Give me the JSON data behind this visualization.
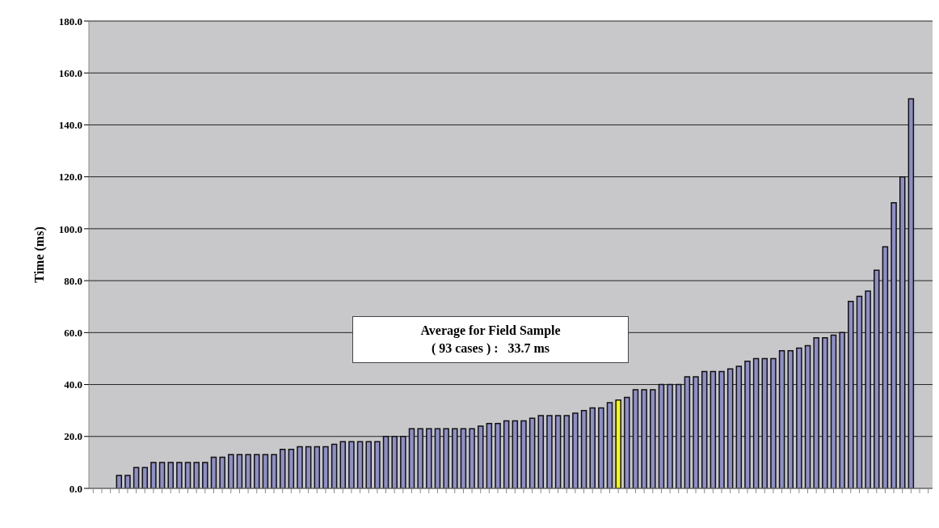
{
  "chart_data": {
    "type": "bar",
    "ylabel": "Time (ms)",
    "categories": [
      null,
      null,
      null,
      null,
      null,
      null,
      null,
      null,
      null,
      null,
      null,
      null,
      null,
      null,
      null,
      null,
      null,
      null,
      null,
      null,
      null,
      null,
      null,
      null,
      null,
      null,
      null,
      null,
      null,
      null,
      null,
      null,
      null,
      null,
      null,
      null,
      null,
      null,
      null,
      null,
      null,
      null,
      null,
      null,
      null,
      null,
      null,
      null,
      null,
      null,
      null,
      null,
      null,
      null,
      null,
      null,
      null,
      null,
      null,
      null,
      null,
      null,
      null,
      null,
      null,
      null,
      null,
      null,
      null,
      null,
      null,
      null,
      null,
      null,
      null,
      null,
      null,
      null,
      null,
      null,
      null,
      null,
      null,
      null,
      null,
      null,
      null,
      null,
      null,
      null,
      null,
      null,
      null,
      null,
      null,
      null,
      null,
      null
    ],
    "values": [
      null,
      null,
      null,
      5,
      5,
      8,
      8,
      10,
      10,
      10,
      10,
      10,
      10,
      10,
      12,
      12,
      13,
      13,
      13,
      13,
      13,
      13,
      15,
      15,
      16,
      16,
      16,
      16,
      17,
      18,
      18,
      18,
      18,
      18,
      20,
      20,
      20,
      23,
      23,
      23,
      23,
      23,
      23,
      23,
      23,
      24,
      25,
      25,
      26,
      26,
      26,
      27,
      28,
      28,
      28,
      28,
      29,
      30,
      31,
      31,
      33,
      34,
      35,
      38,
      38,
      38,
      40,
      40,
      40,
      43,
      43,
      45,
      45,
      45,
      46,
      47,
      49,
      50,
      50,
      50,
      53,
      53,
      54,
      55,
      58,
      58,
      59,
      60,
      72,
      74,
      76,
      84,
      93,
      110,
      120,
      150,
      null,
      null
    ],
    "colors": [
      "#8e8ec8",
      "#8e8ec8",
      "#8e8ec8",
      "#8e8ec8",
      "#8e8ec8",
      "#8e8ec8",
      "#8e8ec8",
      "#8e8ec8",
      "#8e8ec8",
      "#8e8ec8",
      "#8e8ec8",
      "#8e8ec8",
      "#8e8ec8",
      "#8e8ec8",
      "#8e8ec8",
      "#8e8ec8",
      "#8e8ec8",
      "#8e8ec8",
      "#8e8ec8",
      "#8e8ec8",
      "#8e8ec8",
      "#8e8ec8",
      "#8e8ec8",
      "#8e8ec8",
      "#8e8ec8",
      "#8e8ec8",
      "#8e8ec8",
      "#8e8ec8",
      "#8e8ec8",
      "#8e8ec8",
      "#8e8ec8",
      "#8e8ec8",
      "#8e8ec8",
      "#8e8ec8",
      "#8e8ec8",
      "#8e8ec8",
      "#8e8ec8",
      "#8e8ec8",
      "#8e8ec8",
      "#8e8ec8",
      "#8e8ec8",
      "#8e8ec8",
      "#8e8ec8",
      "#8e8ec8",
      "#8e8ec8",
      "#8e8ec8",
      "#8e8ec8",
      "#8e8ec8",
      "#8e8ec8",
      "#8e8ec8",
      "#8e8ec8",
      "#8e8ec8",
      "#8e8ec8",
      "#8e8ec8",
      "#8e8ec8",
      "#8e8ec8",
      "#8e8ec8",
      "#8e8ec8",
      "#8e8ec8",
      "#8e8ec8",
      "#8e8ec8",
      "#ffff00",
      "#8e8ec8",
      "#8e8ec8",
      "#8e8ec8",
      "#8e8ec8",
      "#8e8ec8",
      "#8e8ec8",
      "#8e8ec8",
      "#8e8ec8",
      "#8e8ec8",
      "#8e8ec8",
      "#8e8ec8",
      "#8e8ec8",
      "#8e8ec8",
      "#8e8ec8",
      "#8e8ec8",
      "#8e8ec8",
      "#8e8ec8",
      "#8e8ec8",
      "#8e8ec8",
      "#8e8ec8",
      "#8e8ec8",
      "#8e8ec8",
      "#8e8ec8",
      "#8e8ec8",
      "#8e8ec8",
      "#8e8ec8",
      "#8e8ec8",
      "#8e8ec8",
      "#8e8ec8",
      "#8e8ec8",
      "#8e8ec8",
      "#8e8ec8",
      "#8e8ec8",
      "#8e8ec8",
      "#8e8ec8",
      "#8e8ec8"
    ],
    "ylim": [
      0,
      180
    ],
    "yticks": [
      {
        "value": 0,
        "label": "0.0"
      },
      {
        "value": 20,
        "label": "20.0"
      },
      {
        "value": 40,
        "label": "40.0"
      },
      {
        "value": 60,
        "label": "60.0"
      },
      {
        "value": 80,
        "label": "80.0"
      },
      {
        "value": 100,
        "label": "100.0"
      },
      {
        "value": 120,
        "label": "120.0"
      },
      {
        "value": 140,
        "label": "140.0"
      },
      {
        "value": 160,
        "label": "160.0"
      },
      {
        "value": 180,
        "label": "180.0"
      }
    ],
    "grid": "y",
    "annotations": [
      "Average for Field Sample\n( 93 cases ) :   33.7 ms"
    ]
  }
}
